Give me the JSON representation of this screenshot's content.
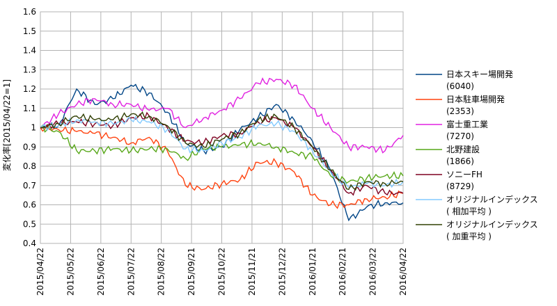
{
  "chart_data": {
    "type": "line",
    "ylabel": "変化率[2015/04/22=1]",
    "ylim": [
      0.4,
      1.6
    ],
    "yticks": [
      "0.4",
      "0.5",
      "0.6",
      "0.7",
      "0.8",
      "0.9",
      "1",
      "1.1",
      "1.2",
      "1.3",
      "1.4",
      "1.5",
      "1.6"
    ],
    "xticks": [
      "2015/04/22",
      "2015/05/22",
      "2015/06/22",
      "2015/07/22",
      "2015/08/22",
      "2015/09/21",
      "2015/10/22",
      "2015/11/21",
      "2015/12/22",
      "2016/01/21",
      "2016/02/21",
      "2016/03/22",
      "2016/04/22"
    ],
    "grid": true,
    "legend_position": "right",
    "series": [
      {
        "name": "日本スキー場開発",
        "code": "(6040)",
        "color": "#004586",
        "values": [
          1.0,
          1.01,
          1.2,
          1.12,
          1.15,
          1.22,
          1.18,
          1.08,
          0.92,
          0.88,
          0.9,
          0.99,
          1.05,
          1.12,
          1.04,
          0.93,
          0.78,
          0.52,
          0.59,
          0.61,
          0.61
        ]
      },
      {
        "name": "日本駐車場開発",
        "code": "(2353)",
        "color": "#ff420e",
        "values": [
          1.0,
          0.99,
          0.98,
          0.97,
          0.95,
          0.92,
          0.95,
          0.88,
          0.7,
          0.68,
          0.71,
          0.73,
          0.82,
          0.82,
          0.77,
          0.65,
          0.6,
          0.6,
          0.63,
          0.64,
          0.66
        ]
      },
      {
        "name": "富士重工業",
        "code": "(7270)",
        "color": "#e020e0",
        "values": [
          1.0,
          1.07,
          1.12,
          1.15,
          1.12,
          1.12,
          1.09,
          1.1,
          1.0,
          1.05,
          1.09,
          1.15,
          1.23,
          1.25,
          1.22,
          1.1,
          1.0,
          0.9,
          0.9,
          0.88,
          0.96
        ]
      },
      {
        "name": "北野建設",
        "code": "(1866)",
        "color": "#57a718",
        "values": [
          1.0,
          0.98,
          0.88,
          0.88,
          0.89,
          0.88,
          0.89,
          0.89,
          0.84,
          0.89,
          0.9,
          0.91,
          0.92,
          0.9,
          0.87,
          0.85,
          0.75,
          0.72,
          0.74,
          0.75,
          0.75
        ]
      },
      {
        "name": "ソニーFH",
        "code": "(8729)",
        "color": "#7e0021",
        "values": [
          1.0,
          1.02,
          1.03,
          1.02,
          1.01,
          1.05,
          1.06,
          1.0,
          0.93,
          0.92,
          0.96,
          0.97,
          1.03,
          1.05,
          1.0,
          0.9,
          0.78,
          0.66,
          0.7,
          0.66,
          0.66
        ]
      },
      {
        "name": "オリジナルインデックス",
        "code": "( 相加平均 )",
        "color": "#83caff",
        "values": [
          1.0,
          1.01,
          1.04,
          1.03,
          1.02,
          1.04,
          1.03,
          0.99,
          0.89,
          0.88,
          0.92,
          0.95,
          1.01,
          1.02,
          0.98,
          0.88,
          0.77,
          0.69,
          0.71,
          0.7,
          0.72
        ]
      },
      {
        "name": "オリジナルインデックス",
        "code": "( 加重平均 )",
        "color": "#314004",
        "values": [
          1.0,
          1.02,
          1.06,
          1.04,
          1.04,
          1.07,
          1.06,
          1.01,
          0.92,
          0.9,
          0.94,
          0.97,
          1.04,
          1.06,
          1.0,
          0.9,
          0.78,
          0.68,
          0.72,
          0.71,
          0.72
        ]
      }
    ]
  }
}
